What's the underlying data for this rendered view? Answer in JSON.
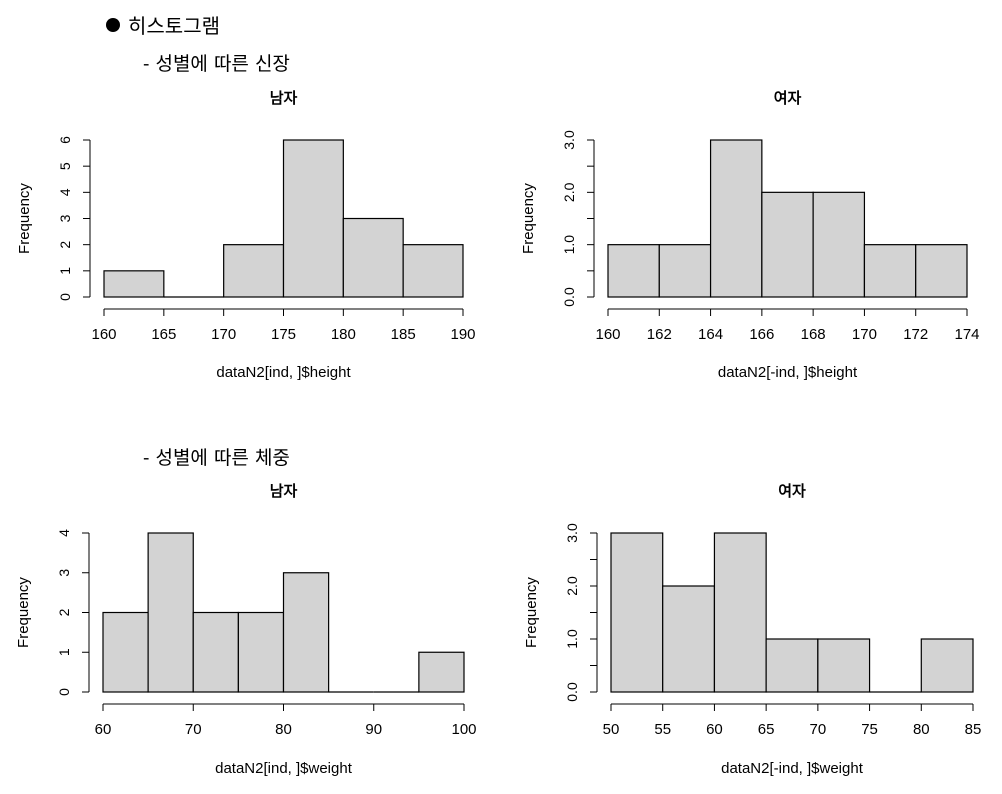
{
  "heading": "히스토그램",
  "sections": [
    {
      "label": "- 성별에 따른 신장"
    },
    {
      "label": "- 성별에 따른 체중"
    }
  ],
  "colors": {
    "bar_fill": "#d3d3d3",
    "bar_stroke": "#000000"
  },
  "chart_data": [
    {
      "type": "bar",
      "title": "남자",
      "xlabel": "dataN2[ind, ]$height",
      "ylabel": "Frequency",
      "bins": [
        [
          160,
          165
        ],
        [
          165,
          170
        ],
        [
          170,
          175
        ],
        [
          175,
          180
        ],
        [
          180,
          185
        ],
        [
          185,
          190
        ]
      ],
      "values": [
        1,
        0,
        2,
        6,
        3,
        2
      ],
      "xlim": [
        160,
        190
      ],
      "ylim": [
        0,
        6
      ],
      "x_ticks": [
        "160",
        "165",
        "170",
        "175",
        "180",
        "185",
        "190"
      ],
      "y_ticks": [
        "0",
        "1",
        "2",
        "3",
        "4",
        "5",
        "6"
      ]
    },
    {
      "type": "bar",
      "title": "여자",
      "xlabel": "dataN2[-ind, ]$height",
      "ylabel": "Frequency",
      "bins": [
        [
          160,
          162
        ],
        [
          162,
          164
        ],
        [
          164,
          166
        ],
        [
          166,
          168
        ],
        [
          168,
          170
        ],
        [
          170,
          172
        ],
        [
          172,
          174
        ]
      ],
      "values": [
        1,
        1,
        3,
        2,
        2,
        1,
        1
      ],
      "xlim": [
        160,
        174
      ],
      "ylim": [
        0,
        3
      ],
      "x_ticks": [
        "160",
        "162",
        "164",
        "166",
        "168",
        "170",
        "172",
        "174"
      ],
      "y_ticks": [
        "0.0",
        "1.0",
        "2.0",
        "3.0"
      ]
    },
    {
      "type": "bar",
      "title": "남자",
      "xlabel": "dataN2[ind, ]$weight",
      "ylabel": "Frequency",
      "bins": [
        [
          60,
          65
        ],
        [
          65,
          70
        ],
        [
          70,
          75
        ],
        [
          75,
          80
        ],
        [
          80,
          85
        ],
        [
          85,
          90
        ],
        [
          90,
          95
        ],
        [
          95,
          100
        ]
      ],
      "values": [
        2,
        4,
        2,
        2,
        3,
        0,
        0,
        1
      ],
      "xlim": [
        60,
        100
      ],
      "ylim": [
        0,
        4
      ],
      "x_ticks": [
        "60",
        "70",
        "80",
        "90",
        "100"
      ],
      "y_ticks": [
        "0",
        "1",
        "2",
        "3",
        "4"
      ]
    },
    {
      "type": "bar",
      "title": "여자",
      "xlabel": "dataN2[-ind, ]$weight",
      "ylabel": "Frequency",
      "bins": [
        [
          50,
          55
        ],
        [
          55,
          60
        ],
        [
          60,
          65
        ],
        [
          65,
          70
        ],
        [
          70,
          75
        ],
        [
          75,
          80
        ],
        [
          80,
          85
        ]
      ],
      "values": [
        3,
        2,
        3,
        1,
        1,
        0,
        1
      ],
      "xlim": [
        50,
        85
      ],
      "ylim": [
        0,
        3
      ],
      "x_ticks": [
        "50",
        "55",
        "60",
        "65",
        "70",
        "75",
        "80",
        "85"
      ],
      "y_ticks": [
        "0.0",
        "1.0",
        "2.0",
        "3.0"
      ]
    }
  ]
}
